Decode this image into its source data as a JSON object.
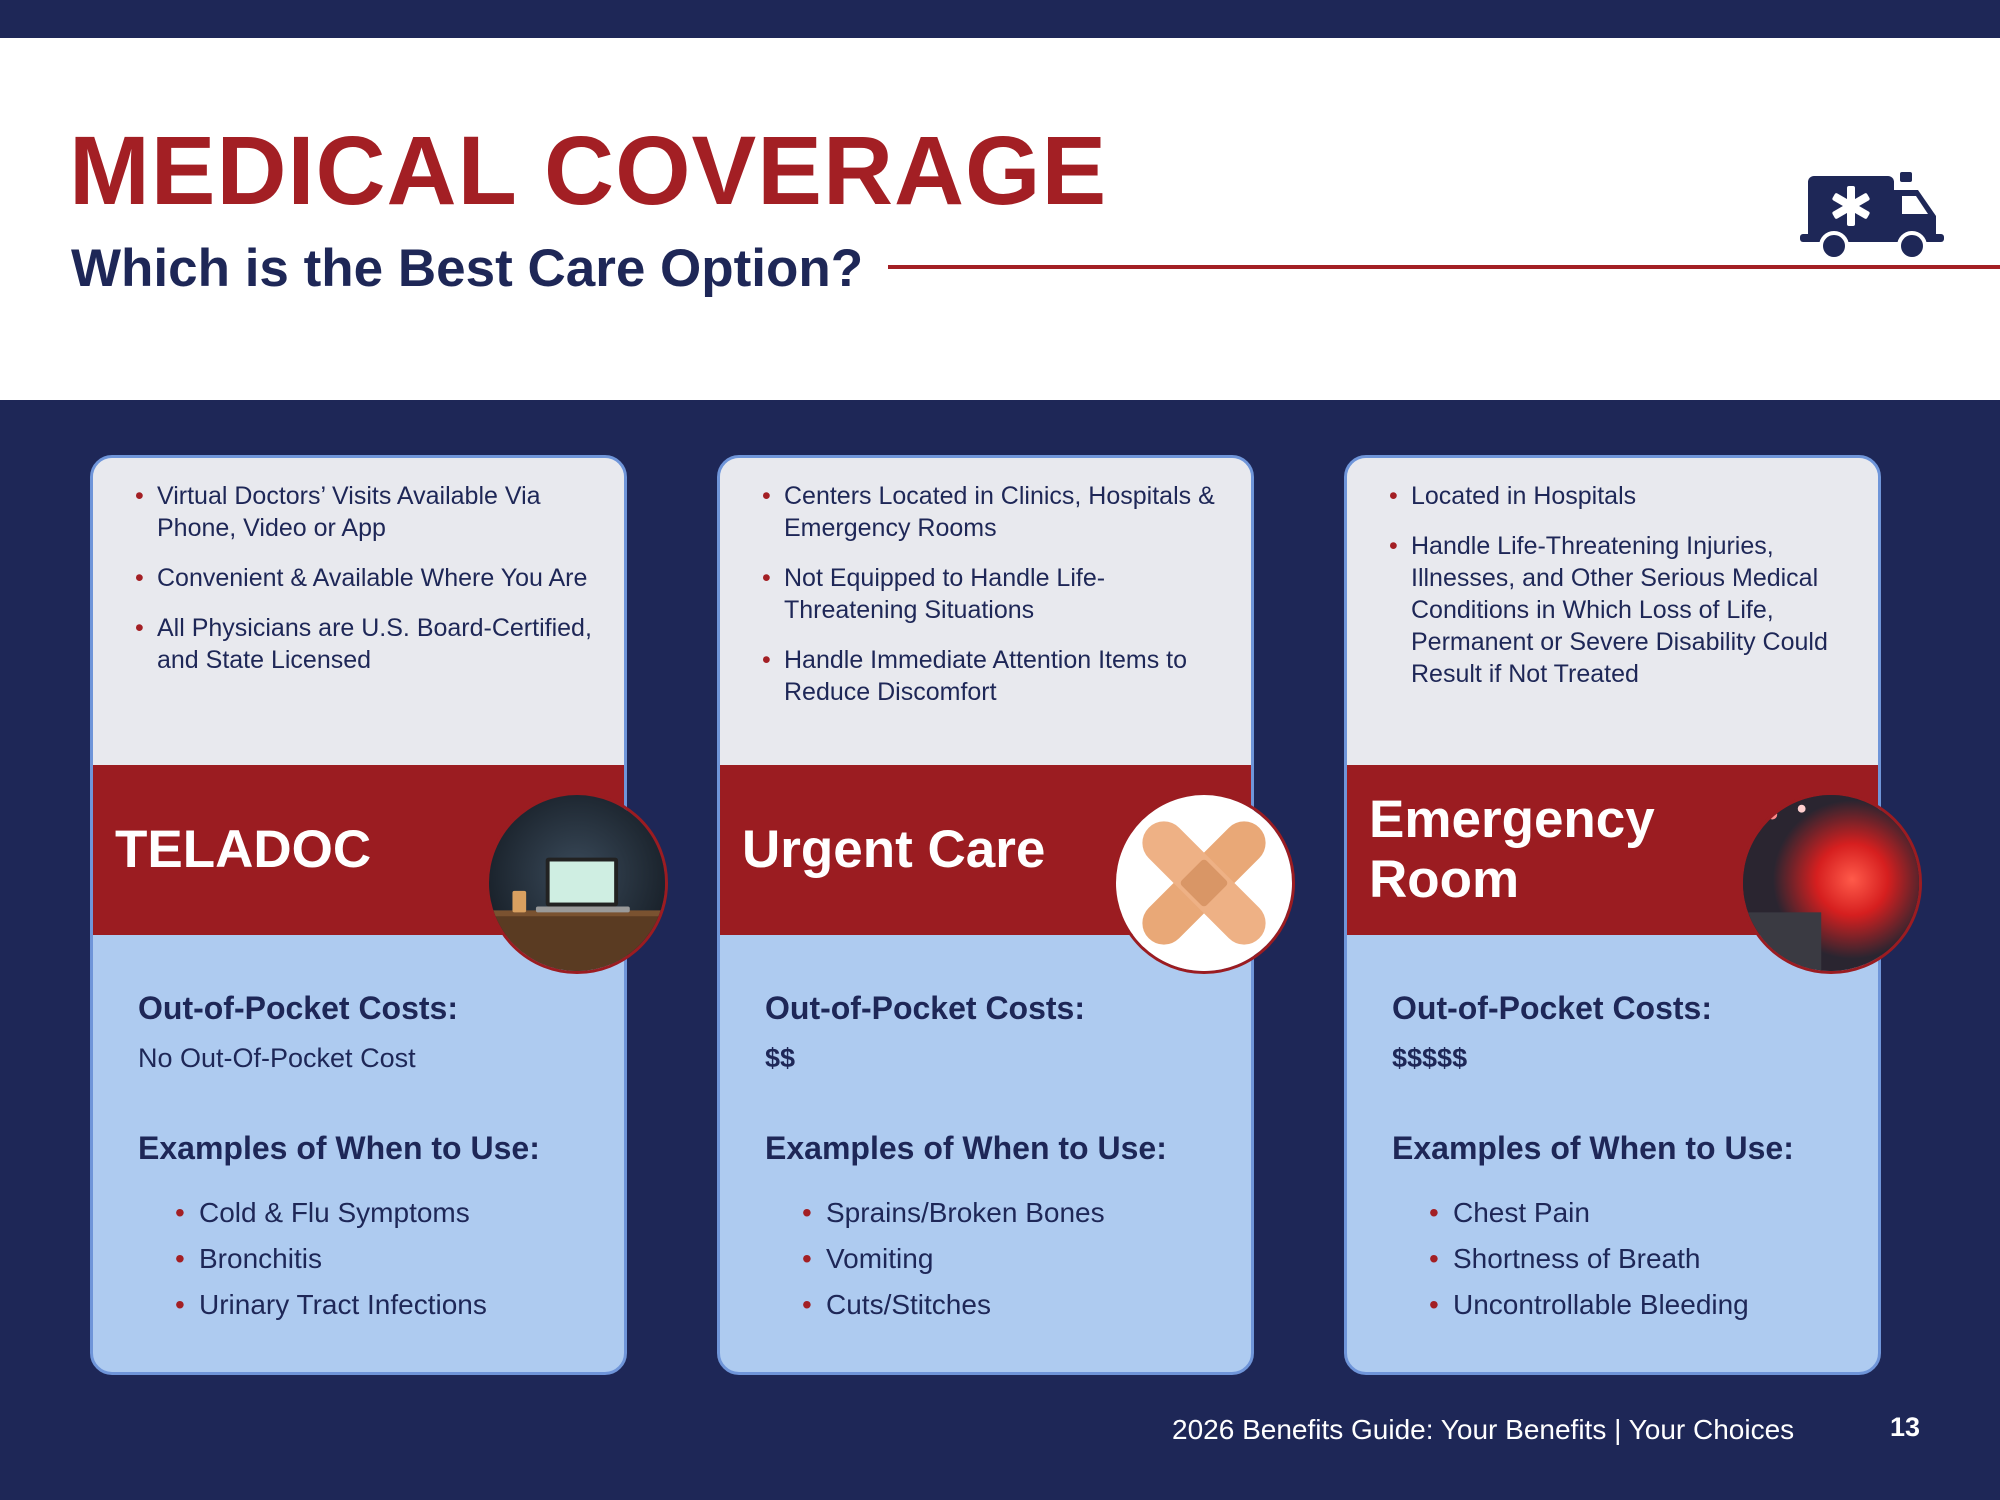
{
  "header": {
    "title": "MEDICAL COVERAGE",
    "subtitle": "Which is the Best Care Option?",
    "icon": "ambulance-icon"
  },
  "colors": {
    "navy": "#1e2757",
    "red": "#a31f24",
    "band_red": "#9b1c21",
    "light_blue": "#aecbf0",
    "light_gray": "#e8e9ee"
  },
  "cards": [
    {
      "features": [
        "Virtual Doctors’ Visits Available Via Phone, Video or App",
        "Convenient & Available Where You Are",
        "All Physicians are U.S. Board-Certified, and State Licensed"
      ],
      "name": "TELADOC",
      "image": "laptop-desk-photo",
      "oop_label": "Out-of-Pocket Costs:",
      "oop_value": "No Out-Of-Pocket Cost",
      "examples_label": "Examples of When to Use:",
      "examples": [
        "Cold & Flu Symptoms",
        "Bronchitis",
        "Urinary Tract Infections"
      ]
    },
    {
      "features": [
        "Centers Located in Clinics, Hospitals & Emergency Rooms",
        "Not Equipped to Handle Life-Threatening Situations",
        "Handle Immediate Attention Items to Reduce Discomfort"
      ],
      "name": "Urgent Care",
      "image": "bandage-photo",
      "oop_label": "Out-of-Pocket Costs:",
      "oop_value": "$$",
      "examples_label": "Examples of When to Use:",
      "examples": [
        "Sprains/Broken Bones",
        "Vomiting",
        "Cuts/Stitches"
      ]
    },
    {
      "features": [
        "Located in Hospitals",
        "Handle Life-Threatening Injuries, Illnesses, and Other Serious Medical Conditions in Which Loss of Life, Permanent or Severe Disability Could Result if Not Treated"
      ],
      "name": "Emergency Room",
      "image": "emergency-lights-photo",
      "oop_label": "Out-of-Pocket Costs:",
      "oop_value": "$$$$$",
      "examples_label": "Examples of When to Use:",
      "examples": [
        "Chest Pain",
        "Shortness of Breath",
        "Uncontrollable Bleeding"
      ]
    }
  ],
  "footer": {
    "text": "2026 Benefits Guide:  Your Benefits  |  Your Choices",
    "page_number": "13"
  }
}
